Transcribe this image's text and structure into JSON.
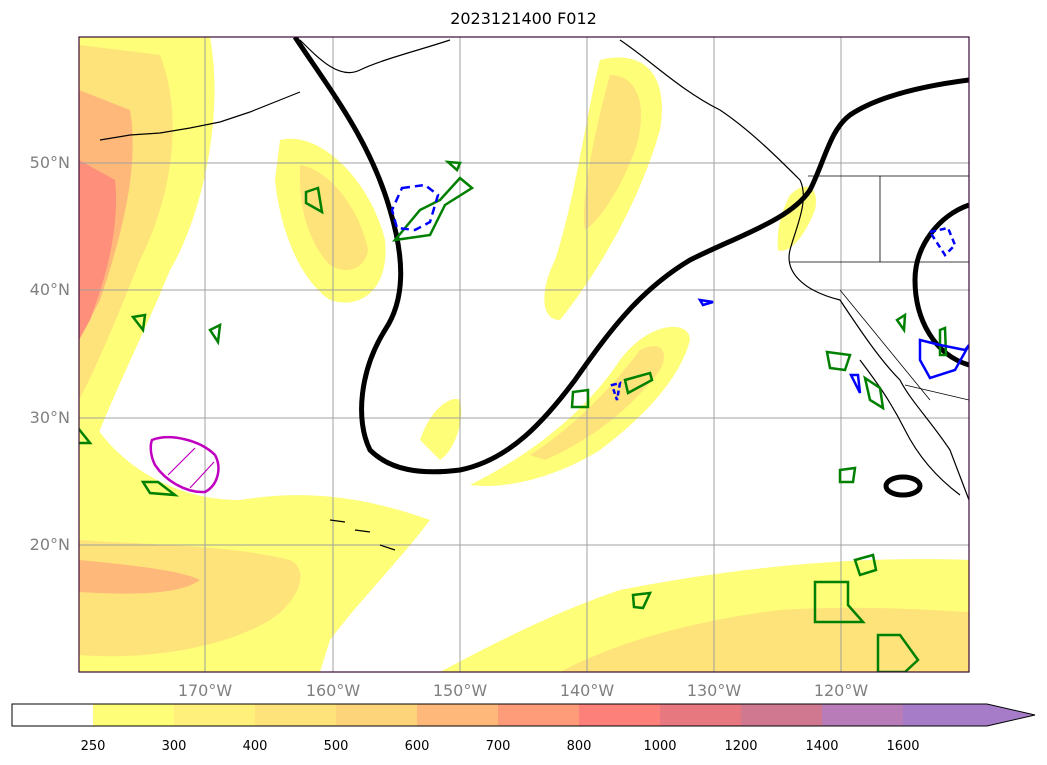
{
  "title": "2023121400 F012",
  "lat_labels": [
    "50°N",
    "40°N",
    "30°N",
    "20°N"
  ],
  "lon_labels": [
    "170°W",
    "160°W",
    "150°W",
    "140°W",
    "130°W",
    "120°W"
  ],
  "colorbar": {
    "ticks": [
      "250",
      "300",
      "400",
      "500",
      "600",
      "700",
      "800",
      "1000",
      "1200",
      "1400",
      "1600"
    ],
    "colors": [
      "#ffffff",
      "#fefe78",
      "#fef07a",
      "#fee27a",
      "#fed47a",
      "#feb87a",
      "#fe9c7a",
      "#fe807a",
      "#e8787f",
      "#d07890",
      "#b87cb8",
      "#a67cc8"
    ],
    "extend": "max"
  },
  "colors": {
    "jet_contour": "#000000",
    "green_contour": "#008000",
    "blue_contour": "#0000ff",
    "magenta_contour": "#c000c0",
    "grid": "#a0a0a0",
    "coastline": "#000000",
    "map_border": "#3a0a3a"
  }
}
